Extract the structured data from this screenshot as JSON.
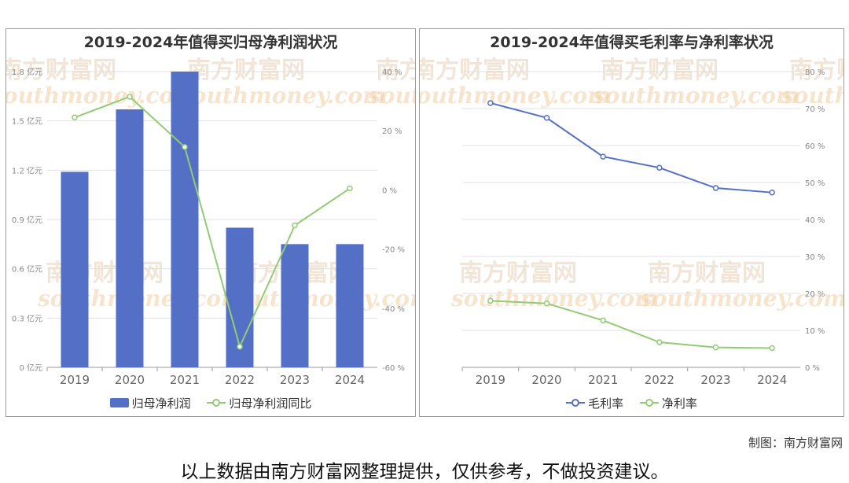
{
  "panels": {
    "left_title": "2019-2024年值得买归母净利润状况",
    "right_title": "2019-2024年值得买毛利率与净利率状况"
  },
  "watermark": {
    "cn": "南方财富网",
    "en": "southmoney.com"
  },
  "footer": {
    "credit": "制图：南方财富网",
    "disclaimer": "以上数据由南方财富网整理提供，仅供参考，不做投资建议。"
  },
  "colors": {
    "bar": "#5470c6",
    "green": "#91cc75",
    "blue_line": "#5470c6"
  },
  "chart_data": [
    {
      "type": "bar",
      "title": "2019-2024年值得买归母净利润状况",
      "categories": [
        "2019",
        "2020",
        "2021",
        "2022",
        "2023",
        "2024"
      ],
      "series": [
        {
          "name": "归母净利润",
          "type": "bar",
          "axis": "left",
          "values": [
            1.19,
            1.57,
            1.8,
            0.85,
            0.75,
            0.75
          ]
        },
        {
          "name": "归母净利润同比",
          "type": "line",
          "axis": "right",
          "values": [
            24.5,
            31.5,
            14.5,
            -53.0,
            -12.0,
            0.5
          ]
        }
      ],
      "y_left": {
        "ylim": [
          0,
          1.8
        ],
        "ticks": [
          "0 亿元",
          "0.3 亿元",
          "0.6 亿元",
          "0.9 亿元",
          "1.2 亿元",
          "1.5 亿元",
          "1.8 亿元"
        ],
        "tick_values": [
          0,
          0.3,
          0.6,
          0.9,
          1.2,
          1.5,
          1.8
        ]
      },
      "y_right": {
        "ylim": [
          -60,
          40
        ],
        "ticks": [
          "-60 %",
          "-40 %",
          "-20 %",
          "0 %",
          "20 %",
          "40 %"
        ],
        "tick_values": [
          -60,
          -40,
          -20,
          0,
          20,
          40
        ]
      },
      "grid": true,
      "legend": "bottom"
    },
    {
      "type": "line",
      "title": "2019-2024年值得买毛利率与净利率状况",
      "categories": [
        "2019",
        "2020",
        "2021",
        "2022",
        "2023",
        "2024"
      ],
      "series": [
        {
          "name": "毛利率",
          "values": [
            71.5,
            67.5,
            57.0,
            54.0,
            48.5,
            47.3
          ]
        },
        {
          "name": "净利率",
          "values": [
            18.0,
            17.3,
            12.7,
            6.8,
            5.4,
            5.2
          ]
        }
      ],
      "y_right": {
        "ylim": [
          0,
          80
        ],
        "ticks": [
          "0 %",
          "10 %",
          "20 %",
          "30 %",
          "40 %",
          "50 %",
          "60 %",
          "70 %",
          "80 %"
        ],
        "tick_values": [
          0,
          10,
          20,
          30,
          40,
          50,
          60,
          70,
          80
        ]
      },
      "grid": true,
      "legend": "bottom"
    }
  ]
}
